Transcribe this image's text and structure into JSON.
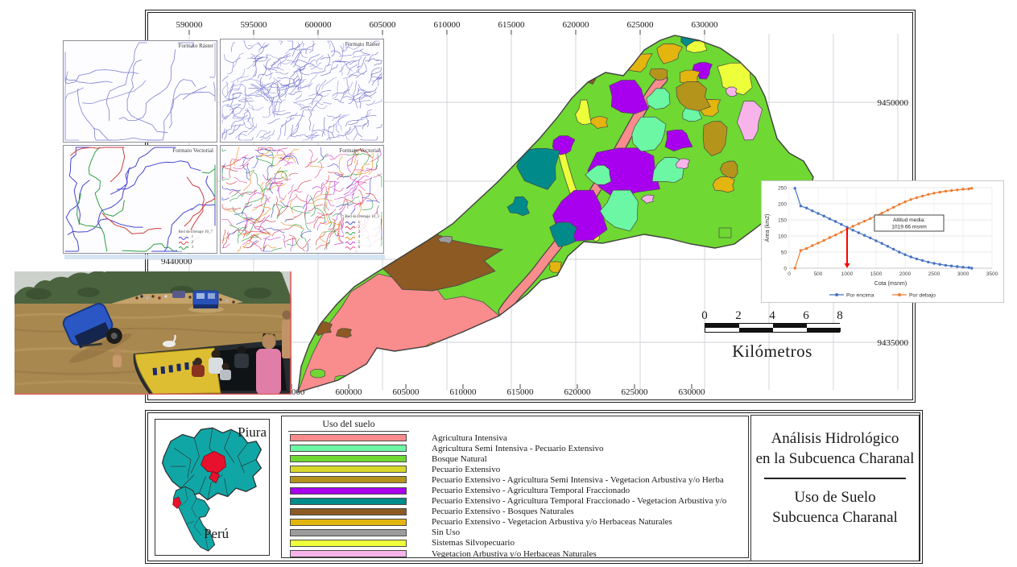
{
  "page": {
    "background": "#ffffff"
  },
  "map_frame": {
    "x_ticks_top": [
      "590000",
      "595000",
      "600000",
      "605000",
      "610000",
      "615000",
      "620000",
      "625000",
      "630000"
    ],
    "x_ticks_bottom": [
      "595000",
      "600000",
      "605000",
      "610000",
      "615000",
      "620000",
      "625000",
      "630000"
    ],
    "y_tick_right_top": "9450000",
    "y_tick_left_middle": "9440000",
    "y_tick_right_bottom": "9435000",
    "scale_bar": {
      "tick_labels": [
        "0",
        "2",
        "4",
        "6",
        "8"
      ],
      "unit_label": "Kilómetros"
    }
  },
  "inset_panels": {
    "top_left_label": "Formato Ráster",
    "top_right_label": "Formato Ráster",
    "bottom_left_label": "Formato Vectorial",
    "bottom_right_label": "Formato Vectorial",
    "bottom_left_legend": {
      "title": "Red de Drenaje 10_7",
      "items": [
        "1",
        "2",
        "3"
      ],
      "colors": [
        "#4646d0",
        "#d23c3c",
        "#2f9e44"
      ]
    },
    "bottom_right_legend": {
      "title": "Red de Drenaje 10_3",
      "items": [
        "1",
        "2",
        "3",
        "4",
        "5",
        "6"
      ],
      "colors": [
        "#4646d0",
        "#d23c3c",
        "#2f9e44",
        "#f08c1e",
        "#c43ad6",
        "#e8489e"
      ]
    }
  },
  "locator": {
    "region_label": "Piura",
    "country_label": "Perú",
    "fill_color": "#11A6A6",
    "highlight_color": "#E8112D"
  },
  "land_use_legend": {
    "title": "Uso del suelo",
    "items": [
      {
        "label": "Agricultura Intensiva",
        "color": "#F98C8C"
      },
      {
        "label": "Agricultura Semi Intensiva - Pecuario Extensivo",
        "color": "#6CF7A4"
      },
      {
        "label": "Bosque Natural",
        "color": "#6FD832"
      },
      {
        "label": "Pecuario Extensivo",
        "color": "#D8D82B"
      },
      {
        "label": "Pecuario Extensivo - Agricultura Semi Intensiva - Vegetacion Arbustiva y/o Herba",
        "color": "#B5941C"
      },
      {
        "label": "Pecuario Extensivo - Agricultura Temporal Fraccionado",
        "color": "#A800EE"
      },
      {
        "label": "Pecuario Extensivo - Agricultura Temporal Fraccionado - Vegetacion Arbustiva y/o",
        "color": "#008A8A"
      },
      {
        "label": "Pecuario Extensivo - Bosques Naturales",
        "color": "#8C5A22"
      },
      {
        "label": "Pecuario Extensivo - Vegetacion Arbustiva y/o Herbaceas Naturales",
        "color": "#E3B50E"
      },
      {
        "label": "Sin Uso",
        "color": "#9C9C9C"
      },
      {
        "label": "Sistemas Silvopecuario",
        "color": "#EDFF3A"
      },
      {
        "label": "Vegetacion Arbustiva y/o Herbaceas Naturales",
        "color": "#F8B3EA"
      }
    ]
  },
  "title_block": {
    "top_title_line1": "Análisis Hidrológico",
    "top_title_line2": "en la Subcuenca Charanal",
    "bottom_title_line1": "Uso de Suelo",
    "bottom_title_line2": "Subcuenca Charanal"
  },
  "chart_data": {
    "type": "line",
    "title": "",
    "xlabel": "Cota (msnm)",
    "ylabel": "Área (km2)",
    "xlim": [
      0,
      3500
    ],
    "ylim": [
      0,
      250
    ],
    "x_ticks": [
      0,
      500,
      1000,
      1500,
      2000,
      2500,
      3000,
      3500
    ],
    "y_ticks": [
      0,
      50,
      100,
      150,
      200,
      250
    ],
    "grid": true,
    "legend_position": "bottom",
    "x": [
      100,
      200,
      300,
      400,
      500,
      600,
      700,
      800,
      900,
      1000,
      1100,
      1200,
      1300,
      1400,
      1500,
      1600,
      1700,
      1800,
      1900,
      2000,
      2100,
      2200,
      2300,
      2400,
      2500,
      2600,
      2700,
      2800,
      2900,
      3000,
      3100,
      3150
    ],
    "series": [
      {
        "name": "Por encima",
        "color": "#4472C4",
        "values": [
          248,
          193,
          187,
          178,
          170,
          162,
          153,
          145,
          136,
          127,
          118,
          110,
          102,
          94,
          85,
          77,
          68,
          59,
          50,
          42,
          35,
          29,
          24,
          19,
          15,
          12,
          9,
          7,
          5,
          3,
          2,
          0
        ]
      },
      {
        "name": "Por debajo",
        "color": "#ED7D31",
        "values": [
          0,
          55,
          61,
          70,
          78,
          86,
          95,
          103,
          112,
          121,
          130,
          138,
          146,
          154,
          163,
          171,
          180,
          189,
          198,
          206,
          213,
          219,
          224,
          229,
          233,
          236,
          239,
          241,
          243,
          245,
          246,
          248
        ]
      }
    ],
    "annotation": {
      "text_line1": "Altitud media:",
      "text_line2": "1019.66 msnm",
      "altitud_media_msnm": "1019.66",
      "arrow_x": 1000,
      "arrow_color": "#FF0000"
    }
  }
}
